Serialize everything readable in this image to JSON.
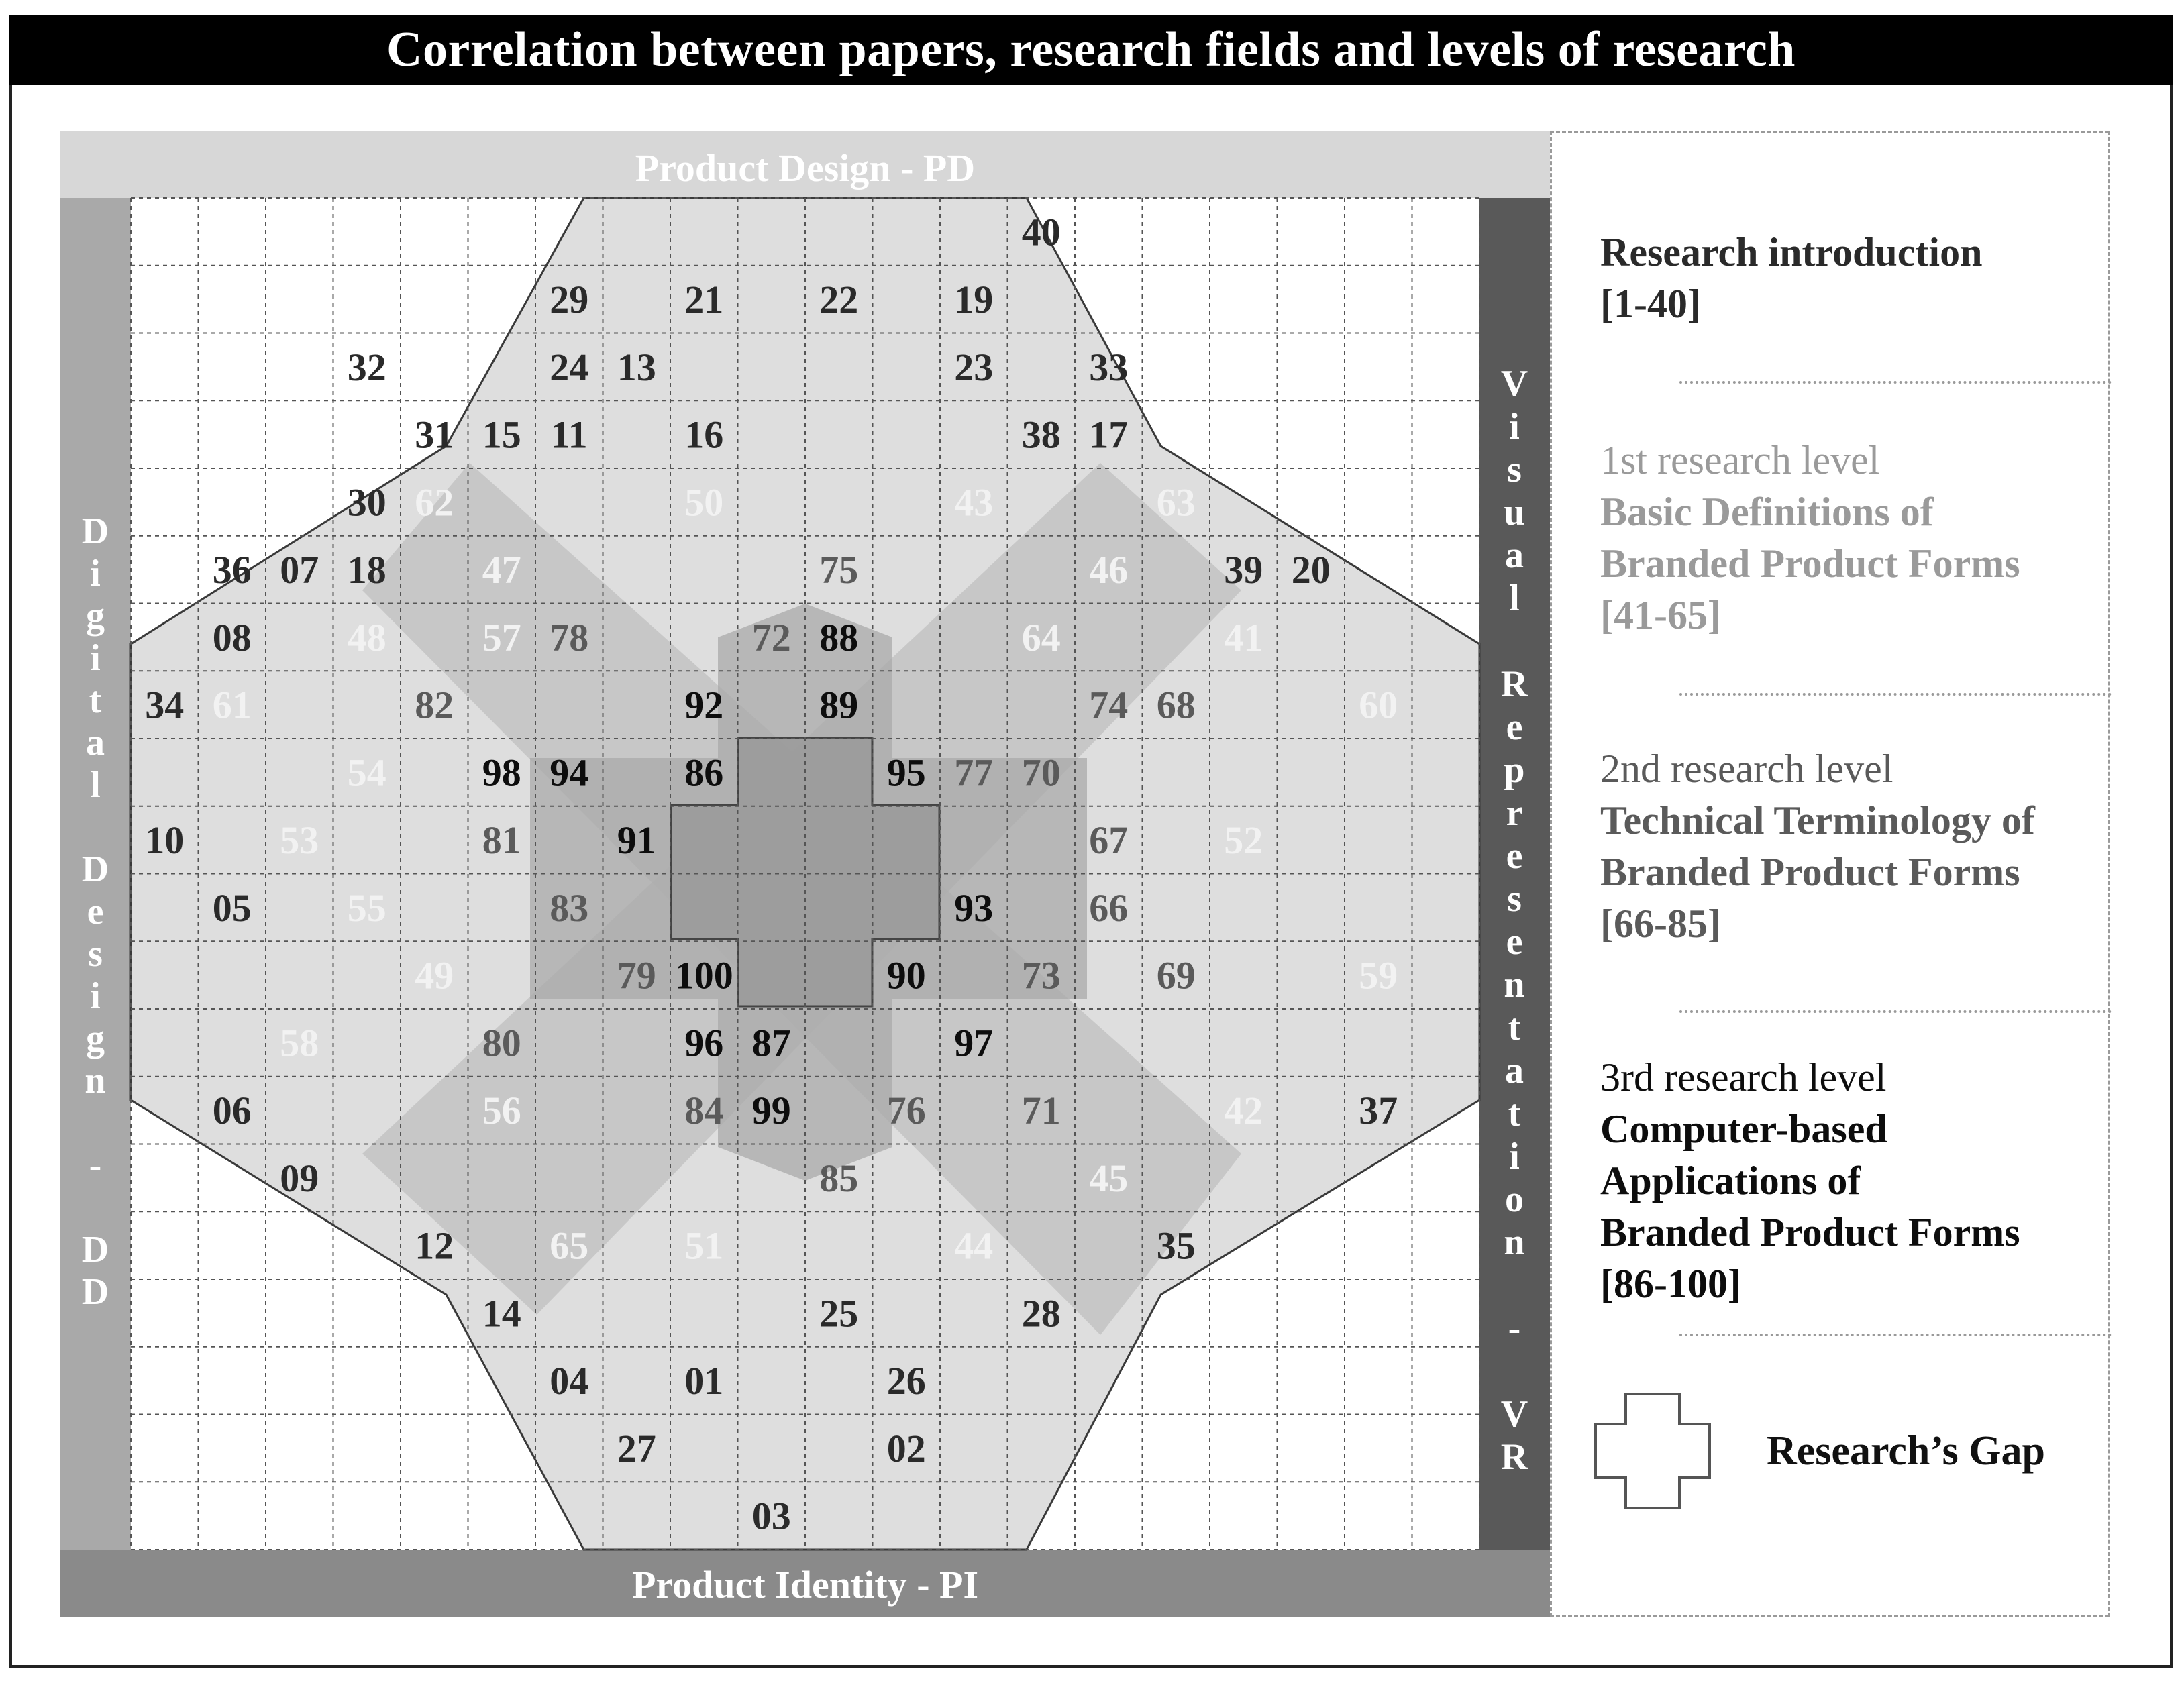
{
  "title": "Correlation between papers, research fields and levels of research",
  "fields": {
    "top": "Product Design - PD",
    "bottom": "Product Identity - PI",
    "left": "Digital Design - DD",
    "right": "Visual Representation - VR"
  },
  "grid": {
    "columns": 20,
    "rows": 20
  },
  "colors": {
    "level0": "#2a2a2a",
    "level1": "#f2f2f2",
    "level2": "#5a5a5a",
    "level3": "#0d0d0d",
    "top_band": "#d7d7d7",
    "bottom_band": "#8a8a8a",
    "left_band": "#a9a9a9",
    "right_band": "#595959"
  },
  "cells": [
    {
      "label": "40",
      "col": 13,
      "row": 0,
      "level": 0
    },
    {
      "label": "29",
      "col": 6,
      "row": 1,
      "level": 0
    },
    {
      "label": "21",
      "col": 8,
      "row": 1,
      "level": 0
    },
    {
      "label": "22",
      "col": 10,
      "row": 1,
      "level": 0
    },
    {
      "label": "19",
      "col": 12,
      "row": 1,
      "level": 0
    },
    {
      "label": "32",
      "col": 3,
      "row": 2,
      "level": 0
    },
    {
      "label": "24",
      "col": 6,
      "row": 2,
      "level": 0
    },
    {
      "label": "13",
      "col": 7,
      "row": 2,
      "level": 0
    },
    {
      "label": "23",
      "col": 12,
      "row": 2,
      "level": 0
    },
    {
      "label": "33",
      "col": 14,
      "row": 2,
      "level": 0
    },
    {
      "label": "31",
      "col": 4,
      "row": 3,
      "level": 0
    },
    {
      "label": "15",
      "col": 5,
      "row": 3,
      "level": 0
    },
    {
      "label": "11",
      "col": 6,
      "row": 3,
      "level": 0
    },
    {
      "label": "16",
      "col": 8,
      "row": 3,
      "level": 0
    },
    {
      "label": "38",
      "col": 13,
      "row": 3,
      "level": 0
    },
    {
      "label": "17",
      "col": 14,
      "row": 3,
      "level": 0
    },
    {
      "label": "30",
      "col": 3,
      "row": 4,
      "level": 0
    },
    {
      "label": "62",
      "col": 4,
      "row": 4,
      "level": 1
    },
    {
      "label": "50",
      "col": 8,
      "row": 4,
      "level": 1
    },
    {
      "label": "43",
      "col": 12,
      "row": 4,
      "level": 1
    },
    {
      "label": "63",
      "col": 15,
      "row": 4,
      "level": 1
    },
    {
      "label": "36",
      "col": 1,
      "row": 5,
      "level": 0
    },
    {
      "label": "07",
      "col": 2,
      "row": 5,
      "level": 0
    },
    {
      "label": "18",
      "col": 3,
      "row": 5,
      "level": 0
    },
    {
      "label": "47",
      "col": 5,
      "row": 5,
      "level": 1
    },
    {
      "label": "75",
      "col": 10,
      "row": 5,
      "level": 2
    },
    {
      "label": "46",
      "col": 14,
      "row": 5,
      "level": 1
    },
    {
      "label": "39",
      "col": 16,
      "row": 5,
      "level": 0
    },
    {
      "label": "20",
      "col": 17,
      "row": 5,
      "level": 0
    },
    {
      "label": "08",
      "col": 1,
      "row": 6,
      "level": 0
    },
    {
      "label": "48",
      "col": 3,
      "row": 6,
      "level": 1
    },
    {
      "label": "57",
      "col": 5,
      "row": 6,
      "level": 1
    },
    {
      "label": "78",
      "col": 6,
      "row": 6,
      "level": 2
    },
    {
      "label": "72",
      "col": 9,
      "row": 6,
      "level": 2
    },
    {
      "label": "88",
      "col": 10,
      "row": 6,
      "level": 3
    },
    {
      "label": "64",
      "col": 13,
      "row": 6,
      "level": 1
    },
    {
      "label": "41",
      "col": 16,
      "row": 6,
      "level": 1
    },
    {
      "label": "34",
      "col": 0,
      "row": 7,
      "level": 0
    },
    {
      "label": "61",
      "col": 1,
      "row": 7,
      "level": 1
    },
    {
      "label": "82",
      "col": 4,
      "row": 7,
      "level": 2
    },
    {
      "label": "92",
      "col": 8,
      "row": 7,
      "level": 3
    },
    {
      "label": "89",
      "col": 10,
      "row": 7,
      "level": 3
    },
    {
      "label": "74",
      "col": 14,
      "row": 7,
      "level": 2
    },
    {
      "label": "68",
      "col": 15,
      "row": 7,
      "level": 2
    },
    {
      "label": "60",
      "col": 18,
      "row": 7,
      "level": 1
    },
    {
      "label": "54",
      "col": 3,
      "row": 8,
      "level": 1
    },
    {
      "label": "98",
      "col": 5,
      "row": 8,
      "level": 3
    },
    {
      "label": "94",
      "col": 6,
      "row": 8,
      "level": 3
    },
    {
      "label": "86",
      "col": 8,
      "row": 8,
      "level": 3
    },
    {
      "label": "95",
      "col": 11,
      "row": 8,
      "level": 3
    },
    {
      "label": "77",
      "col": 12,
      "row": 8,
      "level": 2
    },
    {
      "label": "70",
      "col": 13,
      "row": 8,
      "level": 2
    },
    {
      "label": "10",
      "col": 0,
      "row": 9,
      "level": 0
    },
    {
      "label": "53",
      "col": 2,
      "row": 9,
      "level": 1
    },
    {
      "label": "81",
      "col": 5,
      "row": 9,
      "level": 2
    },
    {
      "label": "91",
      "col": 7,
      "row": 9,
      "level": 3
    },
    {
      "label": "67",
      "col": 14,
      "row": 9,
      "level": 2
    },
    {
      "label": "52",
      "col": 16,
      "row": 9,
      "level": 1
    },
    {
      "label": "05",
      "col": 1,
      "row": 10,
      "level": 0
    },
    {
      "label": "55",
      "col": 3,
      "row": 10,
      "level": 1
    },
    {
      "label": "83",
      "col": 6,
      "row": 10,
      "level": 2
    },
    {
      "label": "93",
      "col": 12,
      "row": 10,
      "level": 3
    },
    {
      "label": "66",
      "col": 14,
      "row": 10,
      "level": 2
    },
    {
      "label": "49",
      "col": 4,
      "row": 11,
      "level": 1
    },
    {
      "label": "79",
      "col": 7,
      "row": 11,
      "level": 2
    },
    {
      "label": "100",
      "col": 8,
      "row": 11,
      "level": 3
    },
    {
      "label": "90",
      "col": 11,
      "row": 11,
      "level": 3
    },
    {
      "label": "73",
      "col": 13,
      "row": 11,
      "level": 2
    },
    {
      "label": "69",
      "col": 15,
      "row": 11,
      "level": 2
    },
    {
      "label": "59",
      "col": 18,
      "row": 11,
      "level": 1
    },
    {
      "label": "58",
      "col": 2,
      "row": 12,
      "level": 1
    },
    {
      "label": "80",
      "col": 5,
      "row": 12,
      "level": 2
    },
    {
      "label": "96",
      "col": 8,
      "row": 12,
      "level": 3
    },
    {
      "label": "87",
      "col": 9,
      "row": 12,
      "level": 3
    },
    {
      "label": "97",
      "col": 12,
      "row": 12,
      "level": 3
    },
    {
      "label": "06",
      "col": 1,
      "row": 13,
      "level": 0
    },
    {
      "label": "56",
      "col": 5,
      "row": 13,
      "level": 1
    },
    {
      "label": "84",
      "col": 8,
      "row": 13,
      "level": 2
    },
    {
      "label": "99",
      "col": 9,
      "row": 13,
      "level": 3
    },
    {
      "label": "76",
      "col": 11,
      "row": 13,
      "level": 2
    },
    {
      "label": "71",
      "col": 13,
      "row": 13,
      "level": 2
    },
    {
      "label": "42",
      "col": 16,
      "row": 13,
      "level": 1
    },
    {
      "label": "37",
      "col": 18,
      "row": 13,
      "level": 0
    },
    {
      "label": "09",
      "col": 2,
      "row": 14,
      "level": 0
    },
    {
      "label": "85",
      "col": 10,
      "row": 14,
      "level": 2
    },
    {
      "label": "45",
      "col": 14,
      "row": 14,
      "level": 1
    },
    {
      "label": "12",
      "col": 4,
      "row": 15,
      "level": 0
    },
    {
      "label": "65",
      "col": 6,
      "row": 15,
      "level": 1
    },
    {
      "label": "51",
      "col": 8,
      "row": 15,
      "level": 1
    },
    {
      "label": "44",
      "col": 12,
      "row": 15,
      "level": 1
    },
    {
      "label": "35",
      "col": 15,
      "row": 15,
      "level": 0
    },
    {
      "label": "14",
      "col": 5,
      "row": 16,
      "level": 0
    },
    {
      "label": "25",
      "col": 10,
      "row": 16,
      "level": 0
    },
    {
      "label": "28",
      "col": 13,
      "row": 16,
      "level": 0
    },
    {
      "label": "04",
      "col": 6,
      "row": 17,
      "level": 0
    },
    {
      "label": "01",
      "col": 8,
      "row": 17,
      "level": 0
    },
    {
      "label": "26",
      "col": 11,
      "row": 17,
      "level": 0
    },
    {
      "label": "27",
      "col": 7,
      "row": 18,
      "level": 0
    },
    {
      "label": "02",
      "col": 11,
      "row": 18,
      "level": 0
    },
    {
      "label": "03",
      "col": 9,
      "row": 19,
      "level": 0
    }
  ],
  "legend": {
    "intro": {
      "label": "Research introduction",
      "range": "[1-40]"
    },
    "level1": {
      "level": "1st research level",
      "line1": "Basic Definitions of",
      "line2": "Branded Product Forms",
      "range": "[41-65]"
    },
    "level2": {
      "level": "2nd research level",
      "line1": "Technical Terminology of",
      "line2": "Branded Product Forms",
      "range": "[66-85]"
    },
    "level3": {
      "level": "3rd research level",
      "line1": "Computer-based",
      "line2": "Applications of",
      "line3": "Branded Product Forms",
      "range": "[86-100]"
    },
    "gap": {
      "label": "Research’s Gap",
      "icon": "cross-outline-icon"
    }
  }
}
